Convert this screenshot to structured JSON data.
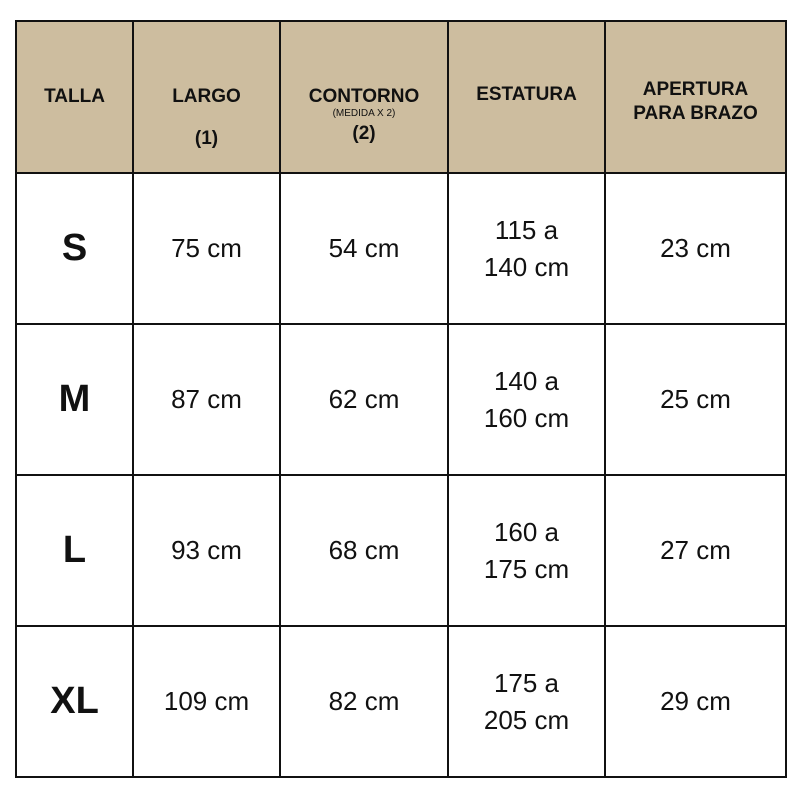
{
  "header": {
    "talla": "TALLA",
    "largo": "LARGO",
    "largo_num": "(1)",
    "contorno": "CONTORNO",
    "contorno_note": "(MEDIDA X 2)",
    "contorno_num": "(2)",
    "estatura": "ESTATURA",
    "apertura_line1": "APERTURA",
    "apertura_line2": "PARA BRAZO"
  },
  "header_color": "#cdbd9f",
  "rows": [
    {
      "talla": "S",
      "largo": "75 cm",
      "contorno": "54 cm",
      "estatura1": "115 a",
      "estatura2": "140 cm",
      "apertura": "23 cm"
    },
    {
      "talla": "M",
      "largo": "87 cm",
      "contorno": "62 cm",
      "estatura1": "140 a",
      "estatura2": "160 cm",
      "apertura": "25 cm"
    },
    {
      "talla": "L",
      "largo": "93 cm",
      "contorno": "68 cm",
      "estatura1": "160 a",
      "estatura2": "175 cm",
      "apertura": "27 cm"
    },
    {
      "talla": "XL",
      "largo": "109 cm",
      "contorno": "82 cm",
      "estatura1": "175 a",
      "estatura2": "205 cm",
      "apertura": "29 cm"
    }
  ]
}
